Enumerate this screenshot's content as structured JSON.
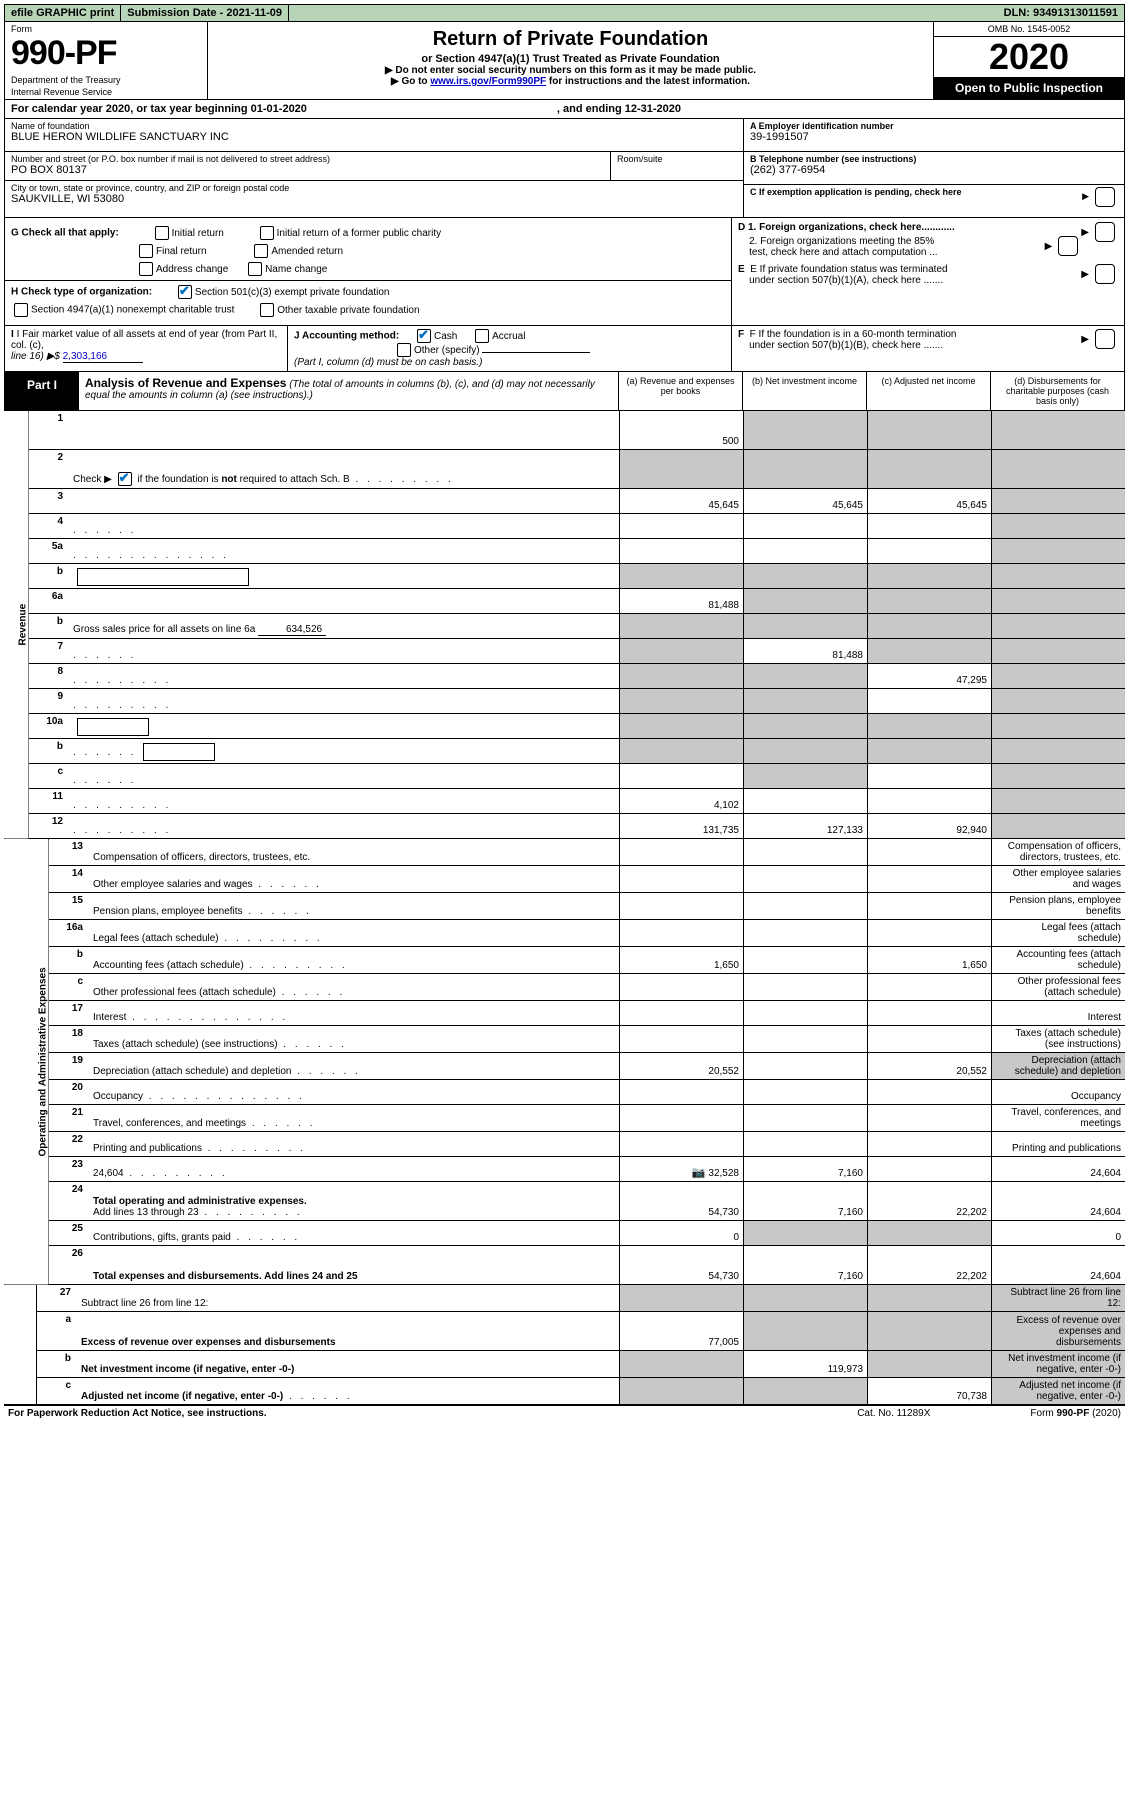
{
  "top": {
    "efile_prefix": "efile",
    "efile_rest": " GRAPHIC print",
    "submission_label": "Submission Date - ",
    "submission_date": "2021-11-09",
    "dln_label": "DLN: ",
    "dln": "93491313011591"
  },
  "header": {
    "form_label": "Form",
    "form_number": "990-PF",
    "dept1": "Department of the Treasury",
    "dept2": "Internal Revenue Service",
    "title": "Return of Private Foundation",
    "subtitle": "or Section 4947(a)(1) Trust Treated as Private Foundation",
    "note1_pre": "▶ Do not enter social security numbers on this form as it may be made public.",
    "note2_pre": "▶ Go to ",
    "note2_link": "www.irs.gov/Form990PF",
    "note2_post": " for instructions and the latest information.",
    "omb": "OMB No. 1545-0052",
    "year": "2020",
    "open": "Open to Public Inspection"
  },
  "calendar": {
    "text": "For calendar year 2020, or tax year beginning 01-01-2020",
    "ending": ", and ending 12-31-2020"
  },
  "entity": {
    "name_label": "Name of foundation",
    "name": "BLUE HERON WILDLIFE SANCTUARY INC",
    "addr_label": "Number and street (or P.O. box number if mail is not delivered to street address)",
    "addr": "PO BOX 80137",
    "room_label": "Room/suite",
    "city_label": "City or town, state or province, country, and ZIP or foreign postal code",
    "city": "SAUKVILLE, WI  53080",
    "a_label": "A Employer identification number",
    "a_val": "39-1991507",
    "b_label": "B Telephone number (see instructions)",
    "b_val": "(262) 377-6954",
    "c_label": "C  If exemption application is pending, check here"
  },
  "g": {
    "label": "G Check all that apply:",
    "opts": [
      "Initial return",
      "Initial return of a former public charity",
      "Final return",
      "Amended return",
      "Address change",
      "Name change"
    ]
  },
  "h": {
    "label": "H Check type of organization:",
    "opt1": "Section 501(c)(3) exempt private foundation",
    "opt2": "Section 4947(a)(1) nonexempt charitable trust",
    "opt3": "Other taxable private foundation"
  },
  "d": {
    "d1": "D 1. Foreign organizations, check here............",
    "d2a": "2. Foreign organizations meeting the 85%",
    "d2b": "test, check here and attach computation ...",
    "e1": "E  If private foundation status was terminated",
    "e2": "under section 507(b)(1)(A), check here .......",
    "f1": "F  If the foundation is in a 60-month termination",
    "f2": "under section 507(b)(1)(B), check here ......."
  },
  "i": {
    "label": "I Fair market value of all assets at end of year (from Part II, col. (c),",
    "line": "line 16) ▶$",
    "val": "2,303,166"
  },
  "j": {
    "label": "J Accounting method:",
    "cash": "Cash",
    "accrual": "Accrual",
    "other": "Other (specify)",
    "note": "(Part I, column (d) must be on cash basis.)"
  },
  "part1": {
    "label": "Part I",
    "title": "Analysis of Revenue and Expenses",
    "title_ital": " (The total of amounts in columns (b), (c), and (d) may not necessarily equal the amounts in column (a) (see instructions).)",
    "cols": {
      "a": "(a) Revenue and expenses per books",
      "b": "(b) Net investment income",
      "c": "(c) Adjusted net income",
      "d": "(d) Disbursements for charitable purposes (cash basis only)"
    }
  },
  "sections": {
    "revenue": "Revenue",
    "opex": "Operating and Administrative Expenses"
  },
  "lines": [
    {
      "n": "1",
      "d": "",
      "a": "500",
      "b": "",
      "c": "",
      "shade_bcd": true,
      "tall": true
    },
    {
      "n": "2",
      "d_html": "Check ▶ [CHK] if the foundation is <b>not</b> required to attach Sch. B",
      "dots": "m",
      "a": "",
      "b": "",
      "c": "",
      "d": "",
      "shade_all": true,
      "check": true,
      "tall": true
    },
    {
      "n": "3",
      "d": "",
      "a": "45,645",
      "b": "45,645",
      "c": "45,645",
      "shade_d": true
    },
    {
      "n": "4",
      "d": "",
      "dots": "s",
      "a": "",
      "b": "",
      "c": "",
      "shade_d": true
    },
    {
      "n": "5a",
      "d": "",
      "dots": "l",
      "a": "",
      "b": "",
      "c": "",
      "shade_d": true
    },
    {
      "n": "b",
      "d": "",
      "box": "long",
      "a": "",
      "b": "",
      "c": "",
      "shade_all": true
    },
    {
      "n": "6a",
      "d": "",
      "a": "81,488",
      "b": "",
      "c": "",
      "shade_bcd": true
    },
    {
      "n": "b",
      "d_html": "Gross sales price for all assets on line 6a",
      "sub": "634,526",
      "a": "",
      "b": "",
      "c": "",
      "d": "",
      "shade_all": true
    },
    {
      "n": "7",
      "d": "",
      "dots": "s",
      "a": "",
      "b": "81,488",
      "c": "",
      "shade_a": true,
      "shade_cd": true
    },
    {
      "n": "8",
      "d": "",
      "dots": "m",
      "a": "",
      "b": "",
      "c": "47,295",
      "shade_ab": true,
      "shade_d": true
    },
    {
      "n": "9",
      "d": "",
      "dots": "m",
      "a": "",
      "b": "",
      "c": "",
      "shade_ab": true,
      "shade_d": true
    },
    {
      "n": "10a",
      "d": "",
      "box": "s",
      "a": "",
      "b": "",
      "c": "",
      "shade_all": true
    },
    {
      "n": "b",
      "d": "",
      "dots": "s",
      "box": "s",
      "a": "",
      "b": "",
      "c": "",
      "shade_all": true
    },
    {
      "n": "c",
      "d": "",
      "dots": "s",
      "a": "",
      "b": "",
      "c": "",
      "shade_b": true,
      "shade_d": true
    },
    {
      "n": "11",
      "d": "",
      "dots": "m",
      "a": "4,102",
      "b": "",
      "c": "",
      "shade_d": true
    },
    {
      "n": "12",
      "d": "",
      "dots": "m",
      "bold": true,
      "a": "131,735",
      "b": "127,133",
      "c": "92,940",
      "shade_d": true
    }
  ],
  "oplines": [
    {
      "n": "13",
      "d": "Compensation of officers, directors, trustees, etc."
    },
    {
      "n": "14",
      "d": "Other employee salaries and wages",
      "dots": "s"
    },
    {
      "n": "15",
      "d": "Pension plans, employee benefits",
      "dots": "s"
    },
    {
      "n": "16a",
      "d": "Legal fees (attach schedule)",
      "dots": "m"
    },
    {
      "n": "b",
      "d": "Accounting fees (attach schedule)",
      "dots": "m",
      "a": "1,650",
      "c": "1,650"
    },
    {
      "n": "c",
      "d": "Other professional fees (attach schedule)",
      "dots": "s"
    },
    {
      "n": "17",
      "d": "Interest",
      "dots": "l"
    },
    {
      "n": "18",
      "d": "Taxes (attach schedule) (see instructions)",
      "dots": "s"
    },
    {
      "n": "19",
      "d": "Depreciation (attach schedule) and depletion",
      "dots": "s",
      "a": "20,552",
      "c": "20,552",
      "shade_d": true
    },
    {
      "n": "20",
      "d": "Occupancy",
      "dots": "l"
    },
    {
      "n": "21",
      "d": "Travel, conferences, and meetings",
      "dots": "s"
    },
    {
      "n": "22",
      "d": "Printing and publications",
      "dots": "m"
    },
    {
      "n": "23",
      "d": "24,604",
      "dots": "m",
      "icon": true,
      "a": "32,528",
      "b": "7,160"
    },
    {
      "n": "24",
      "d": "Total operating and administrative expenses.",
      "bold": true,
      "tall": true,
      "d2": "Add lines 13 through 23",
      "dots": "m",
      "a": "54,730",
      "b": "7,160",
      "c": "22,202",
      "dd": "24,604"
    },
    {
      "n": "25",
      "d": "Contributions, gifts, grants paid",
      "dots": "s",
      "a": "0",
      "shade_bc": true,
      "dd": "0"
    },
    {
      "n": "26",
      "d": "Total expenses and disbursements. Add lines 24 and 25",
      "bold": true,
      "tall": true,
      "a": "54,730",
      "b": "7,160",
      "c": "22,202",
      "dd": "24,604"
    }
  ],
  "netlines": [
    {
      "n": "27",
      "d": "Subtract line 26 from line 12:",
      "shade_all": true
    },
    {
      "n": "a",
      "d": "Excess of revenue over expenses and disbursements",
      "bold": true,
      "a": "77,005",
      "shade_bcd": true,
      "tall": true
    },
    {
      "n": "b",
      "d": "Net investment income (if negative, enter -0-)",
      "bold": true,
      "b": "119,973",
      "shade_a": true,
      "shade_cd": true
    },
    {
      "n": "c",
      "d": "Adjusted net income (if negative, enter -0-)",
      "bold": true,
      "dots": "s",
      "c": "70,738",
      "shade_ab": true,
      "shade_d": true
    }
  ],
  "footer": {
    "left": "For Paperwork Reduction Act Notice, see instructions.",
    "mid": "Cat. No. 11289X",
    "right": "Form 990-PF (2020)"
  },
  "colors": {
    "topbar_bg": "#b8d4b8",
    "link": "#0000cc",
    "check": "#0070c0",
    "shade": "#c8c8c8"
  }
}
